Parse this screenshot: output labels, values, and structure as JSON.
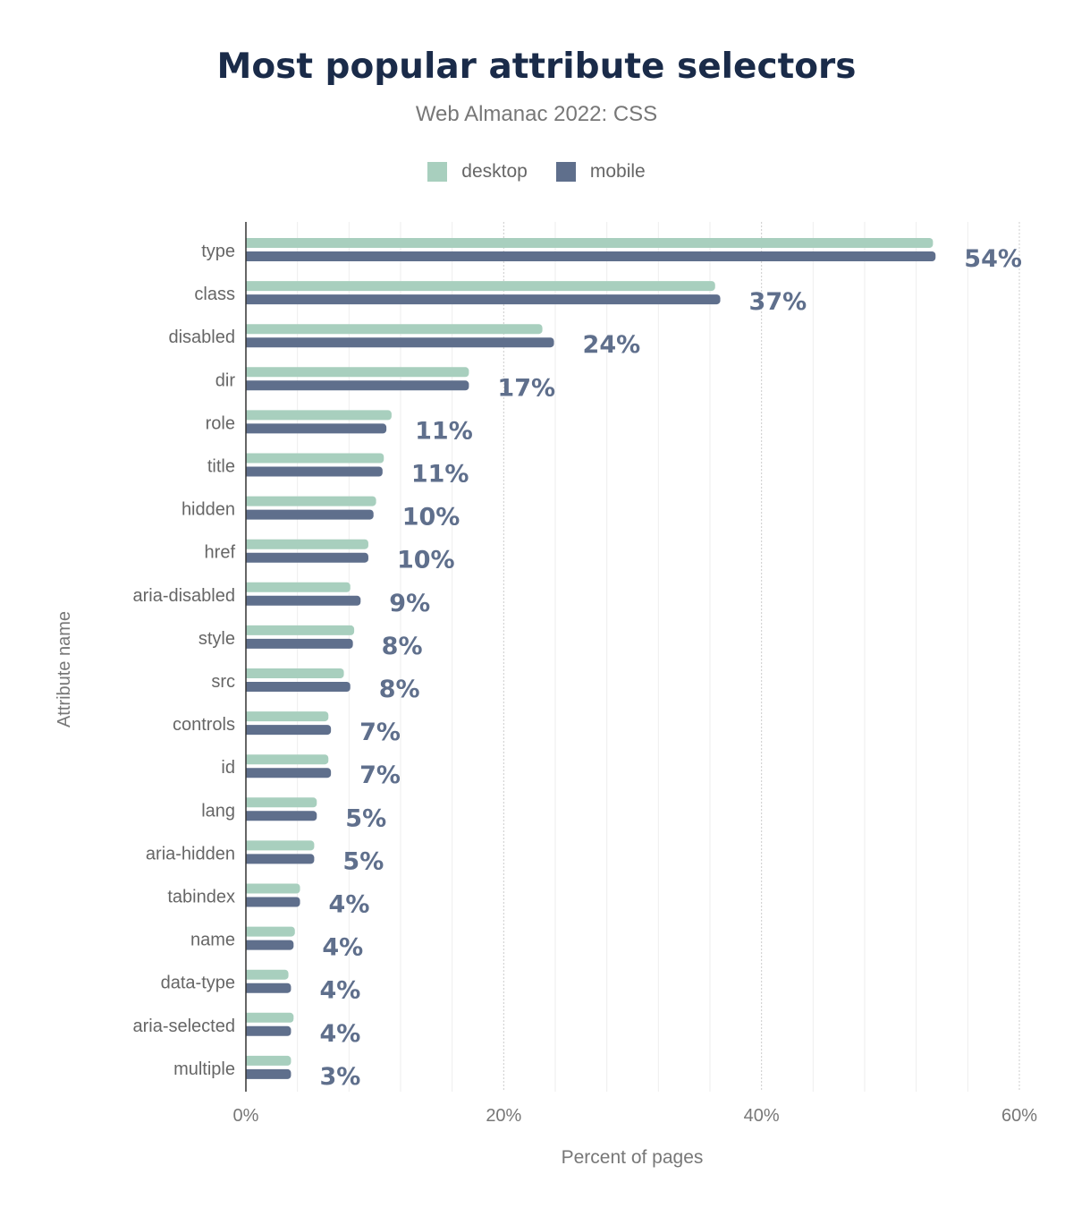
{
  "chart_data": {
    "type": "bar",
    "orientation": "horizontal",
    "title": "Most popular attribute selectors",
    "subtitle": "Web Almanac 2022: CSS",
    "xlabel": "Percent of pages",
    "ylabel": "Attribute name",
    "xlim": [
      0,
      60
    ],
    "xticks": [
      "0%",
      "20%",
      "40%",
      "60%"
    ],
    "grid": true,
    "legend_position": "top",
    "categories": [
      "type",
      "class",
      "disabled",
      "dir",
      "role",
      "title",
      "hidden",
      "href",
      "aria-disabled",
      "style",
      "src",
      "controls",
      "id",
      "lang",
      "aria-hidden",
      "tabindex",
      "name",
      "data-type",
      "aria-selected",
      "multiple"
    ],
    "series": [
      {
        "name": "desktop",
        "color": "#a8cfbe",
        "values": [
          53.3,
          36.4,
          23.0,
          17.3,
          11.3,
          10.7,
          10.1,
          9.5,
          8.1,
          8.4,
          7.6,
          6.4,
          6.4,
          5.5,
          5.3,
          4.2,
          3.8,
          3.3,
          3.7,
          3.5
        ]
      },
      {
        "name": "mobile",
        "color": "#5f6f8c",
        "values": [
          53.5,
          36.8,
          23.9,
          17.3,
          10.9,
          10.6,
          9.9,
          9.5,
          8.9,
          8.3,
          8.1,
          6.6,
          6.6,
          5.5,
          5.3,
          4.2,
          3.7,
          3.5,
          3.5,
          3.5
        ]
      }
    ],
    "data_labels": [
      "54%",
      "37%",
      "24%",
      "17%",
      "11%",
      "11%",
      "10%",
      "10%",
      "9%",
      "8%",
      "8%",
      "7%",
      "7%",
      "5%",
      "5%",
      "4%",
      "4%",
      "4%",
      "4%",
      "3%"
    ]
  }
}
